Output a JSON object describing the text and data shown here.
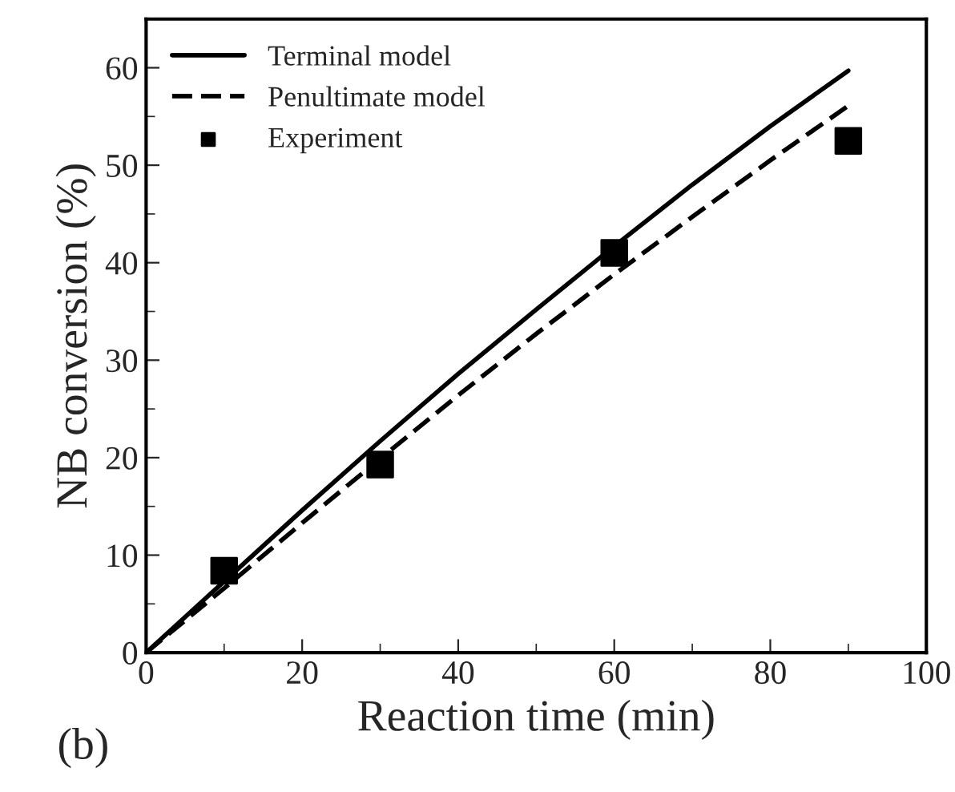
{
  "chart_data": {
    "type": "line",
    "xlabel": "Reaction time (min)",
    "ylabel": "NB conversion (%)",
    "annotations": [
      "(b)"
    ],
    "xlim": [
      0,
      100
    ],
    "xticks": [
      0,
      20,
      40,
      60,
      80,
      100
    ],
    "ylim": [
      0,
      65
    ],
    "yticks": [
      0,
      10,
      20,
      30,
      40,
      50,
      60
    ],
    "grid": false,
    "legend": "top left",
    "series": [
      {
        "name": "Terminal model",
        "color": "#000000",
        "line_style": "solid",
        "marker": "none",
        "x": [
          0,
          10,
          20,
          30,
          40,
          50,
          60,
          70,
          80,
          90
        ],
        "values": [
          0,
          7.3,
          14.6,
          21.7,
          28.6,
          35.2,
          41.7,
          48,
          54,
          59.7
        ]
      },
      {
        "name": "Penultimate model",
        "color": "#000000",
        "line_style": "dashed",
        "marker": "none",
        "x": [
          0,
          10,
          20,
          30,
          40,
          50,
          60,
          70,
          80,
          90
        ],
        "values": [
          0,
          6.6,
          13.3,
          19.9,
          26.4,
          32.7,
          38.8,
          44.7,
          50.5,
          56.1
        ]
      },
      {
        "name": "Experiment",
        "type": "scatter",
        "color": "#000000",
        "marker": "square",
        "x": [
          10,
          30,
          60,
          90
        ],
        "values": [
          8.4,
          19.3,
          41.0,
          52.5
        ]
      }
    ]
  }
}
